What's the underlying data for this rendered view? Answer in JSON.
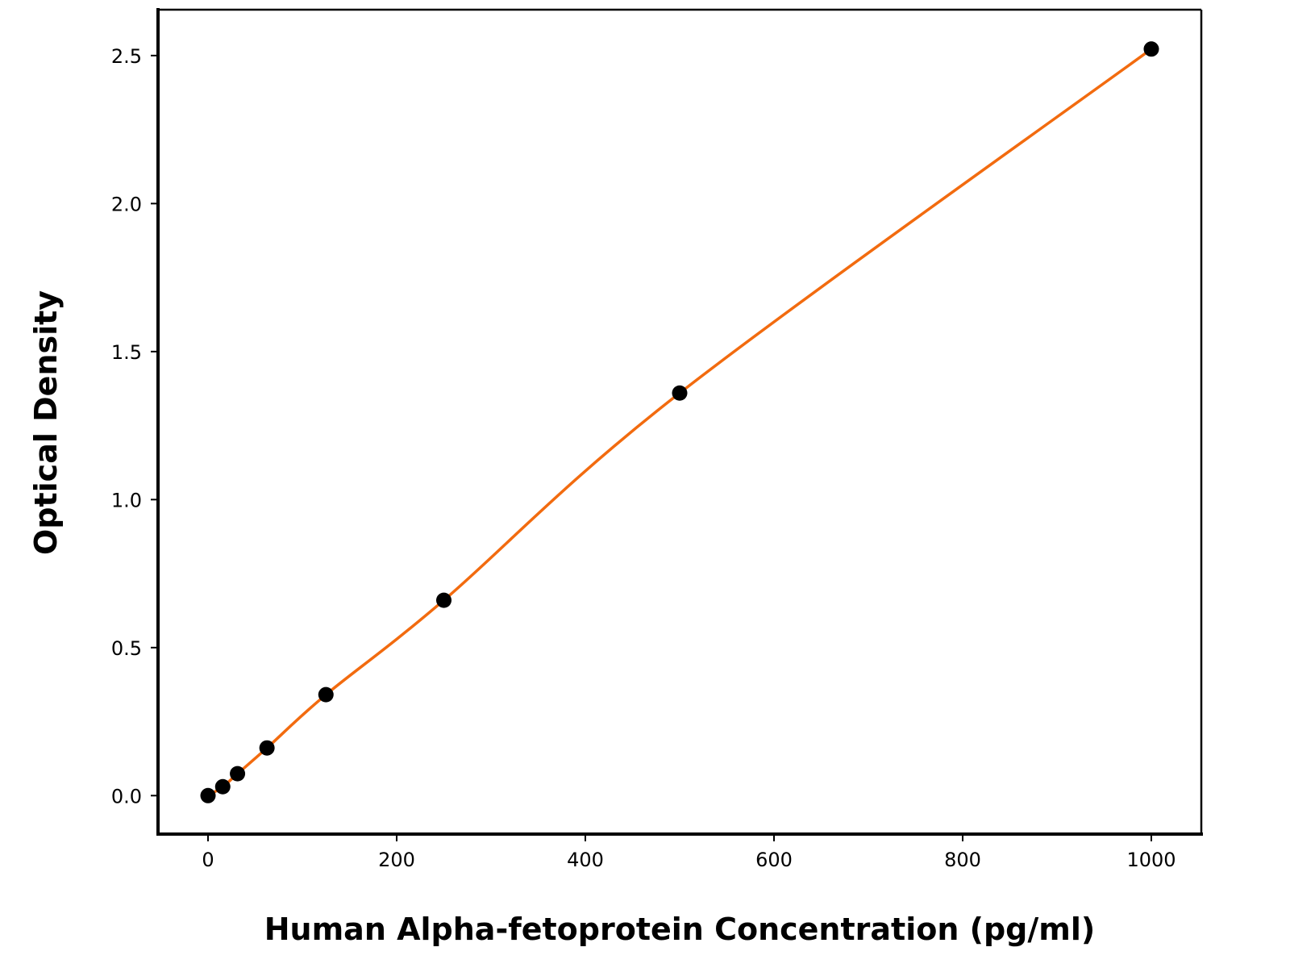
{
  "chart_data": {
    "type": "line",
    "title": "",
    "xlabel": "Human Alpha-fetoprotein Concentration (pg/ml)",
    "ylabel": "Optical Density",
    "xlim": [
      -53,
      1053
    ],
    "ylim": [
      -0.13,
      2.655
    ],
    "xticks": [
      0,
      200,
      400,
      600,
      800,
      1000
    ],
    "xtick_labels": [
      "0",
      "200",
      "400",
      "600",
      "800",
      "1000"
    ],
    "yticks": [
      0.0,
      0.5,
      1.0,
      1.5,
      2.0,
      2.5
    ],
    "ytick_labels": [
      "0.0",
      "0.5",
      "1.0",
      "1.5",
      "2.0",
      "2.5"
    ],
    "grid": false,
    "series": [
      {
        "x": [
          0,
          15.6,
          31.25,
          62.5,
          125,
          250,
          500,
          1000
        ],
        "y": [
          0.0,
          0.03,
          0.074,
          0.161,
          0.341,
          0.66,
          1.36,
          2.522
        ],
        "marker_color": "#000000",
        "line_color": "#f26b0f"
      }
    ]
  }
}
